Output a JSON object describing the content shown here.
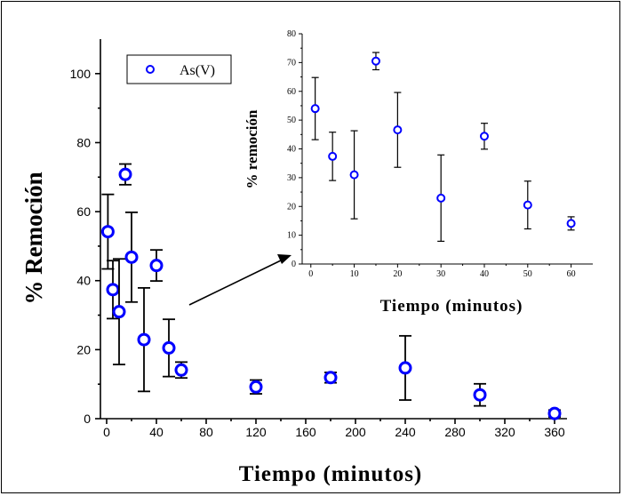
{
  "chart_data": [
    {
      "type": "scatter",
      "title": "",
      "xlabel": "Tiempo (minutos)",
      "ylabel": "% Remoción",
      "xlim": [
        -5,
        370
      ],
      "ylim": [
        0,
        110
      ],
      "xticks": [
        0,
        40,
        80,
        120,
        160,
        200,
        240,
        280,
        320,
        360
      ],
      "yticks": [
        0,
        20,
        40,
        60,
        80,
        100
      ],
      "legend": "top-left",
      "grid": false,
      "series": [
        {
          "name": "As(V)",
          "color": "#0000ff",
          "x": [
            1,
            5,
            10,
            15,
            20,
            30,
            40,
            50,
            60,
            120,
            180,
            240,
            300,
            360
          ],
          "y": [
            54.2,
            37.4,
            31.0,
            70.8,
            46.8,
            22.9,
            44.4,
            20.5,
            14.1,
            9.2,
            11.9,
            14.7,
            6.9,
            1.5
          ],
          "error": [
            10.8,
            8.4,
            15.3,
            3.0,
            13.0,
            15.0,
            4.5,
            8.3,
            2.3,
            2.0,
            1.5,
            9.3,
            3.2,
            1.0
          ]
        }
      ]
    },
    {
      "type": "scatter",
      "title": "",
      "xlabel": "Tiempo (minutos)",
      "ylabel": "% remoción",
      "xlim": [
        -2,
        65
      ],
      "ylim": [
        0,
        80
      ],
      "xticks": [
        0,
        10,
        20,
        30,
        40,
        50,
        60
      ],
      "yticks": [
        0,
        10,
        20,
        30,
        40,
        50,
        60,
        70,
        80
      ],
      "grid": false,
      "series": [
        {
          "color": "#0000ff",
          "x": [
            1,
            5,
            10,
            15,
            20,
            30,
            40,
            50,
            60
          ],
          "y": [
            54.0,
            37.4,
            31.0,
            70.5,
            46.6,
            22.9,
            44.4,
            20.5,
            14.1
          ],
          "error": [
            10.8,
            8.4,
            15.3,
            3.0,
            13.0,
            15.0,
            4.5,
            8.3,
            2.3
          ]
        }
      ]
    }
  ]
}
